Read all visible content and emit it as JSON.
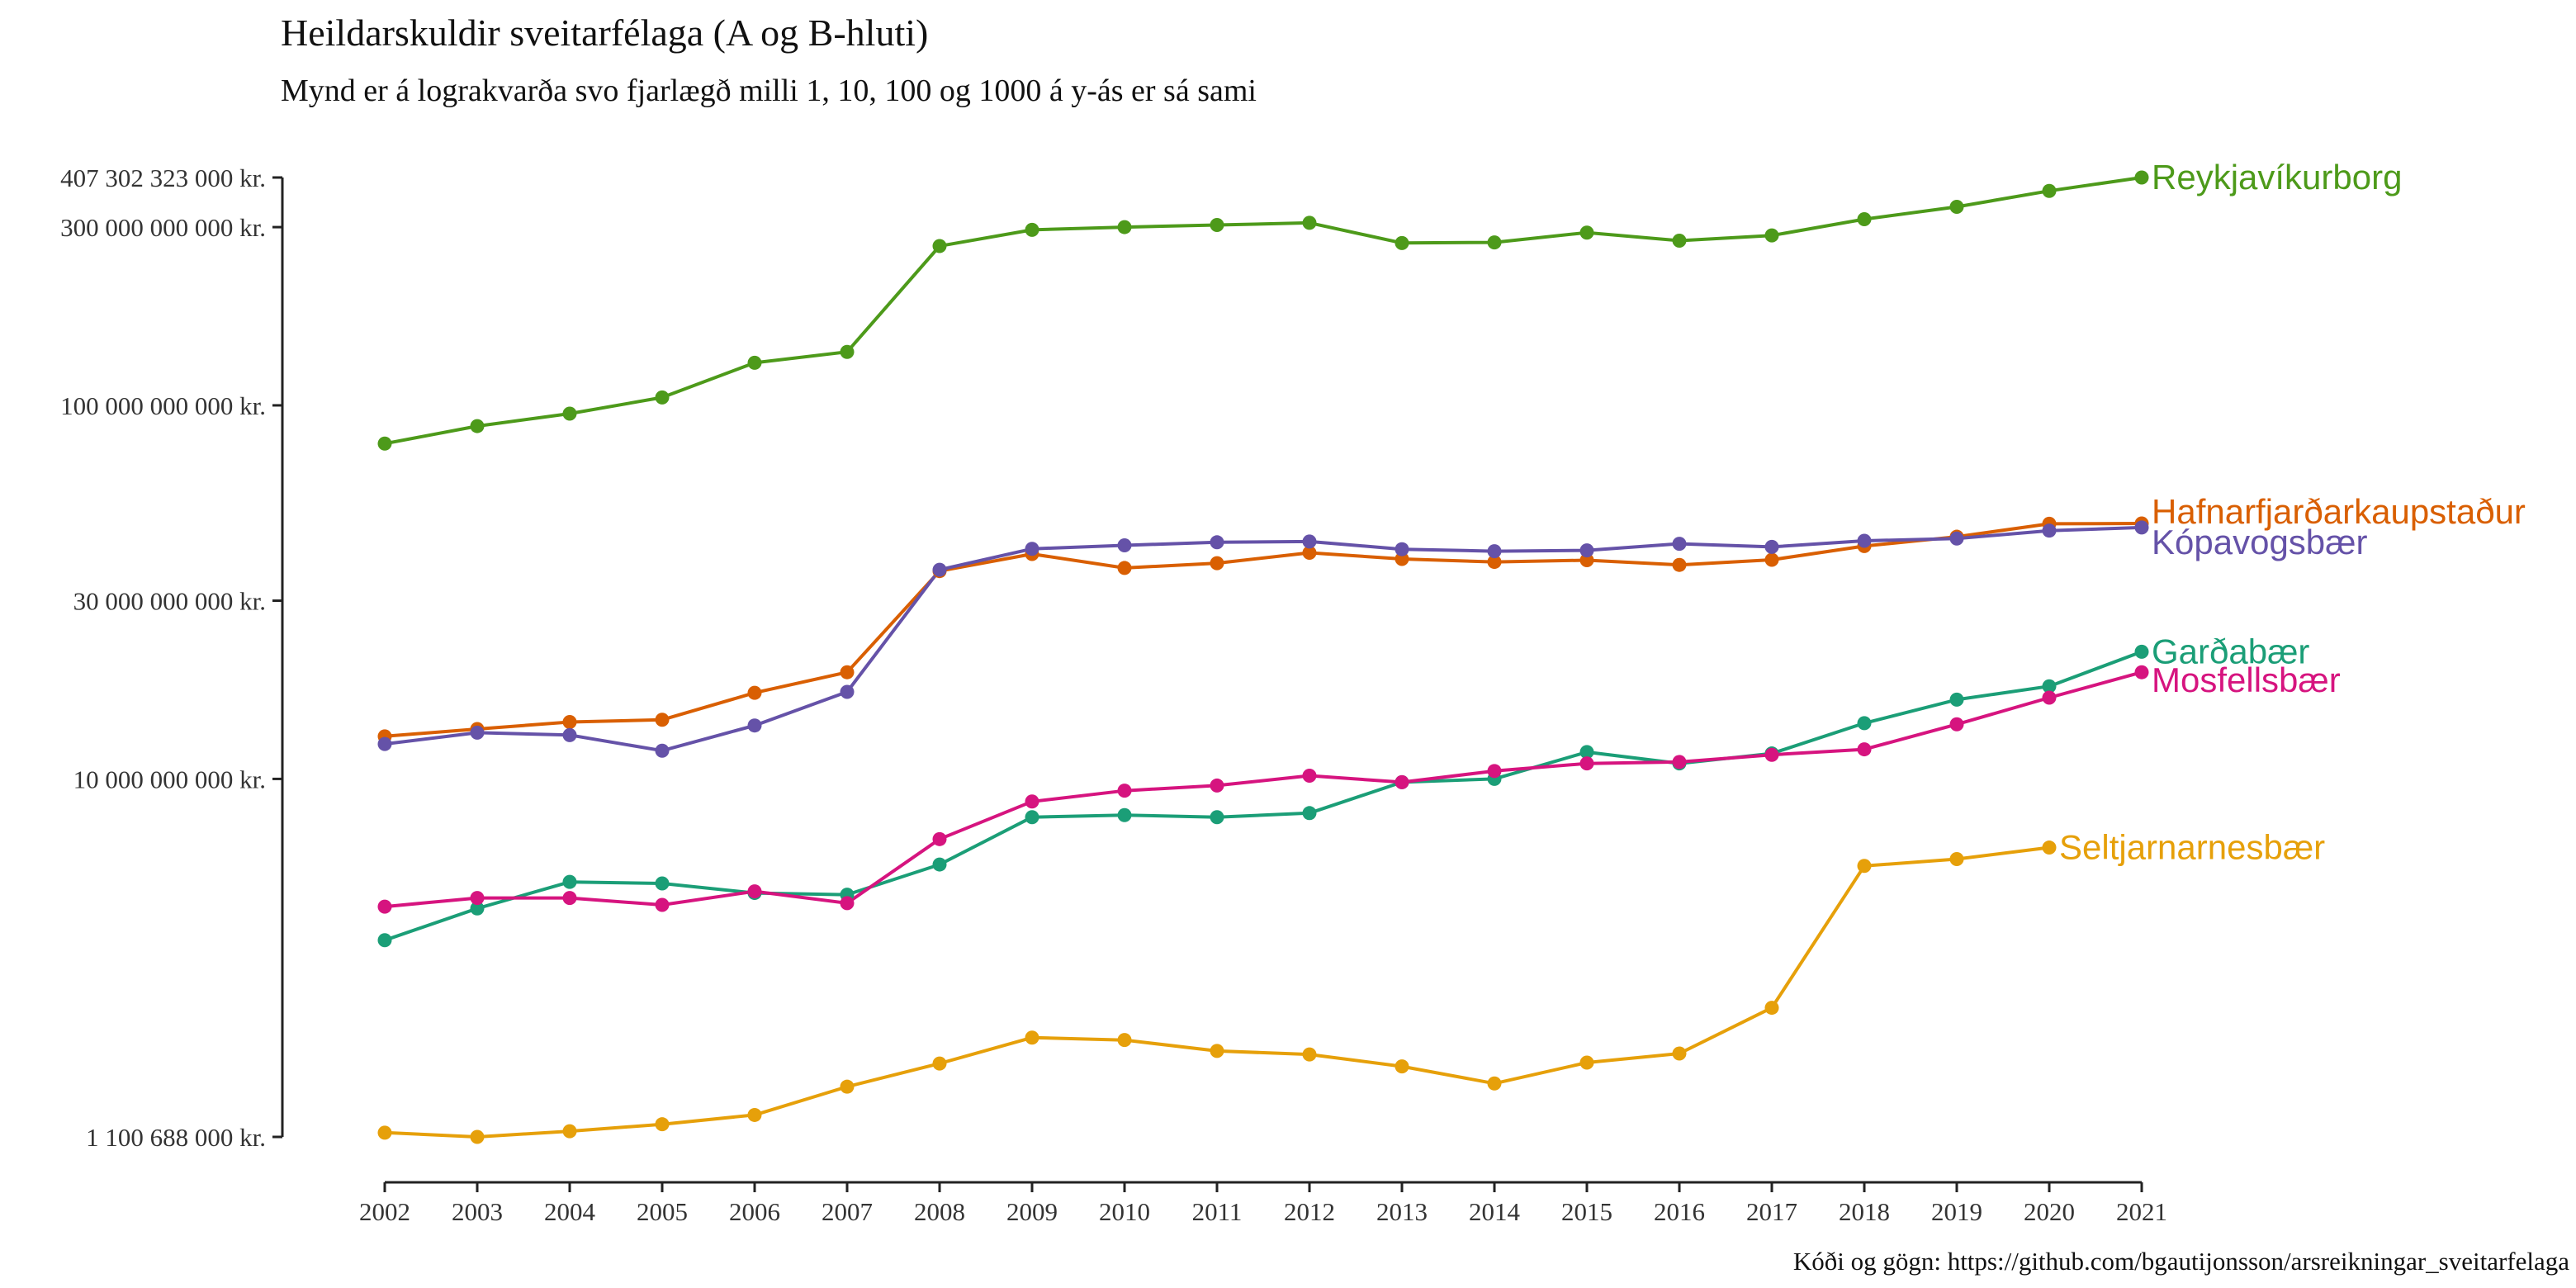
{
  "chart_data": {
    "type": "line",
    "title": "Heildarskuldir sveitarfélaga (A og B-hluti)",
    "subtitle": "Mynd er á lograkvarða svo fjarlægð milli 1, 10, 100 og 1000 á y-ás er sá sami",
    "caption": "Kóði og gögn: https://github.com/bgautijonsson/arsreikningar_sveitarfelaga",
    "xlabel": "",
    "ylabel": "",
    "y_scale": "log",
    "ylim": [
      1100688000,
      407302323000
    ],
    "xlim": [
      2002,
      2021
    ],
    "grid": false,
    "legend": "direct labels at line ends",
    "x_ticks": [
      "2002",
      "2003",
      "2004",
      "2005",
      "2006",
      "2007",
      "2008",
      "2009",
      "2010",
      "2011",
      "2012",
      "2013",
      "2014",
      "2015",
      "2016",
      "2017",
      "2018",
      "2019",
      "2020",
      "2021"
    ],
    "y_ticks": [
      {
        "value": 1100688000,
        "label": "1 100 688 000 kr."
      },
      {
        "value": 10000000000,
        "label": "10 000 000 000 kr."
      },
      {
        "value": 30000000000,
        "label": "30 000 000 000 kr."
      },
      {
        "value": 100000000000,
        "label": "100 000 000 000 kr."
      },
      {
        "value": 300000000000,
        "label": "300 000 000 000 kr."
      },
      {
        "value": 407302323000,
        "label": "407 302 323 000 kr."
      }
    ],
    "series": [
      {
        "name": "Reykjavíkurborg",
        "color": "#4d9a1a",
        "x": [
          2002,
          2003,
          2004,
          2005,
          2006,
          2007,
          2008,
          2009,
          2010,
          2011,
          2012,
          2013,
          2014,
          2015,
          2016,
          2017,
          2018,
          2019,
          2020,
          2021
        ],
        "values": [
          79000000000,
          88000000000,
          95000000000,
          105000000000,
          130000000000,
          139000000000,
          267000000000,
          295000000000,
          300000000000,
          304000000000,
          308000000000,
          272000000000,
          273000000000,
          290000000000,
          276000000000,
          285000000000,
          315000000000,
          340000000000,
          375000000000,
          407302323000
        ]
      },
      {
        "name": "Hafnarfjarðarkaupstaður",
        "color": "#d95f02",
        "x": [
          2002,
          2003,
          2004,
          2005,
          2006,
          2007,
          2008,
          2009,
          2010,
          2011,
          2012,
          2013,
          2014,
          2015,
          2016,
          2017,
          2018,
          2019,
          2020,
          2021
        ],
        "values": [
          13000000000,
          13600000000,
          14200000000,
          14400000000,
          17000000000,
          19300000000,
          36000000000,
          40000000000,
          36700000000,
          37800000000,
          40300000000,
          38800000000,
          38100000000,
          38500000000,
          37400000000,
          38600000000,
          42000000000,
          44500000000,
          48200000000,
          48300000000
        ]
      },
      {
        "name": "Kópavogsbær",
        "color": "#6552a8",
        "x": [
          2002,
          2003,
          2004,
          2005,
          2006,
          2007,
          2008,
          2009,
          2010,
          2011,
          2012,
          2013,
          2014,
          2015,
          2016,
          2017,
          2018,
          2019,
          2020,
          2021
        ],
        "values": [
          12400000000,
          13300000000,
          13100000000,
          11900000000,
          13900000000,
          17100000000,
          36300000000,
          41300000000,
          42200000000,
          43000000000,
          43200000000,
          41200000000,
          40700000000,
          40900000000,
          42600000000,
          41800000000,
          43400000000,
          44000000000,
          46200000000,
          47100000000
        ]
      },
      {
        "name": "Garðabær",
        "color": "#1b9e77",
        "x": [
          2002,
          2003,
          2004,
          2005,
          2006,
          2007,
          2008,
          2009,
          2010,
          2011,
          2012,
          2013,
          2014,
          2015,
          2016,
          2017,
          2018,
          2019,
          2020,
          2021
        ],
        "values": [
          3700000000,
          4500000000,
          5300000000,
          5250000000,
          4950000000,
          4900000000,
          5900000000,
          7900000000,
          8000000000,
          7900000000,
          8100000000,
          9800000000,
          10000000000,
          11800000000,
          11000000000,
          11700000000,
          14100000000,
          16300000000,
          17700000000,
          21900000000
        ]
      },
      {
        "name": "Mosfellsbær",
        "color": "#d6147f",
        "x": [
          2002,
          2003,
          2004,
          2005,
          2006,
          2007,
          2008,
          2009,
          2010,
          2011,
          2012,
          2013,
          2014,
          2015,
          2016,
          2017,
          2018,
          2019,
          2020,
          2021
        ],
        "values": [
          4550000000,
          4800000000,
          4800000000,
          4600000000,
          5000000000,
          4650000000,
          6900000000,
          8700000000,
          9300000000,
          9600000000,
          10200000000,
          9800000000,
          10500000000,
          11000000000,
          11100000000,
          11600000000,
          12000000000,
          14000000000,
          16500000000,
          19300000000
        ]
      },
      {
        "name": "Seltjarnarnesbær",
        "color": "#e6a00a",
        "x": [
          2002,
          2003,
          2004,
          2005,
          2006,
          2007,
          2008,
          2009,
          2010,
          2011,
          2012,
          2013,
          2014,
          2015,
          2016,
          2017,
          2018,
          2019,
          2020
        ],
        "values": [
          1130000000,
          1100688000,
          1140000000,
          1190000000,
          1260000000,
          1500000000,
          1730000000,
          2030000000,
          2000000000,
          1870000000,
          1830000000,
          1700000000,
          1530000000,
          1740000000,
          1840000000,
          2440000000,
          5850000000,
          6100000000,
          6550000000
        ]
      }
    ]
  }
}
